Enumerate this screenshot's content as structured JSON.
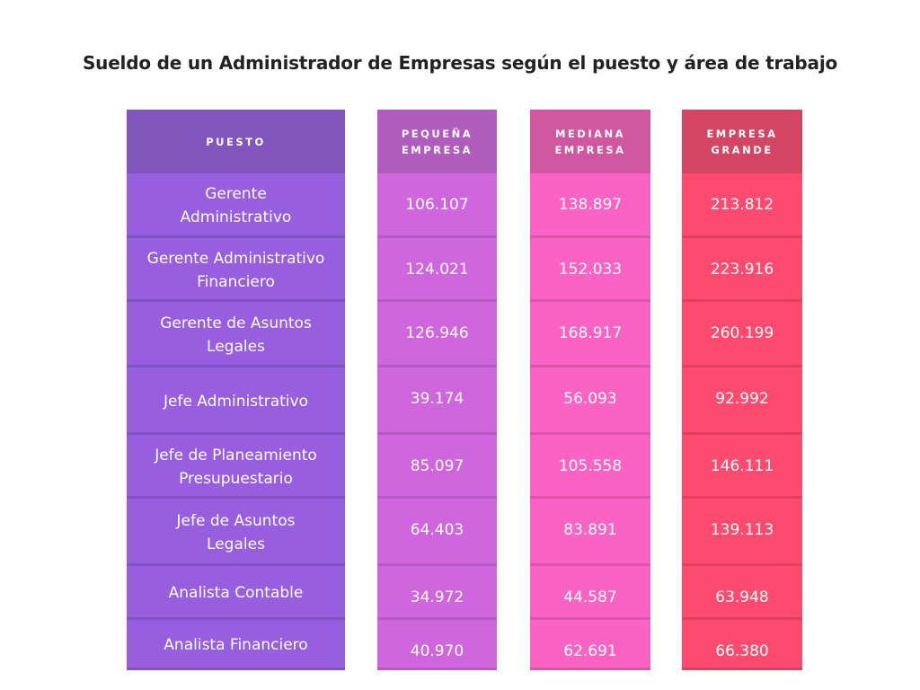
{
  "title": "Sueldo de un Administrador de Empresas según el puesto y  área de trabajo",
  "chart_data": {
    "type": "table",
    "title": "Sueldo de un Administrador de Empresas según el puesto y  área de trabajo",
    "columns": [
      {
        "header": "PUESTO",
        "header_color": "#8155bb",
        "body_color": "#975ee0"
      },
      {
        "header": "PEQUEÑA\nEMPRESA",
        "header_color": "#b05cbd",
        "body_color": "#d066dd"
      },
      {
        "header": "MEDIANA\nEMPRESA",
        "header_color": "#d056a0",
        "body_color": "#fa62c3"
      },
      {
        "header": "EMPRESA\nGRANDE",
        "header_color": "#d44563",
        "body_color": "#fd4a6e"
      }
    ],
    "rows": [
      [
        "Gerente\nAdministrativo",
        "106.107",
        "138.897",
        "213.812"
      ],
      [
        "Gerente Administrativo\nFinanciero",
        "124.021",
        "152.033",
        "223.916"
      ],
      [
        "Gerente de Asuntos\nLegales",
        "126.946",
        "168.917",
        "260.199"
      ],
      [
        "Jefe Administrativo",
        "39.174",
        "56.093",
        "92.992"
      ],
      [
        "Jefe de Planeamiento\nPresupuestario",
        "85.097",
        "105.558",
        "146.111"
      ],
      [
        "Jefe de Asuntos\nLegales",
        "64.403",
        "83.891",
        "139.113"
      ],
      [
        "Analista Contable",
        "34.972",
        "44.587",
        "63.948"
      ],
      [
        "Analista Financiero",
        "40.970",
        "62.691",
        "66.380"
      ]
    ]
  }
}
